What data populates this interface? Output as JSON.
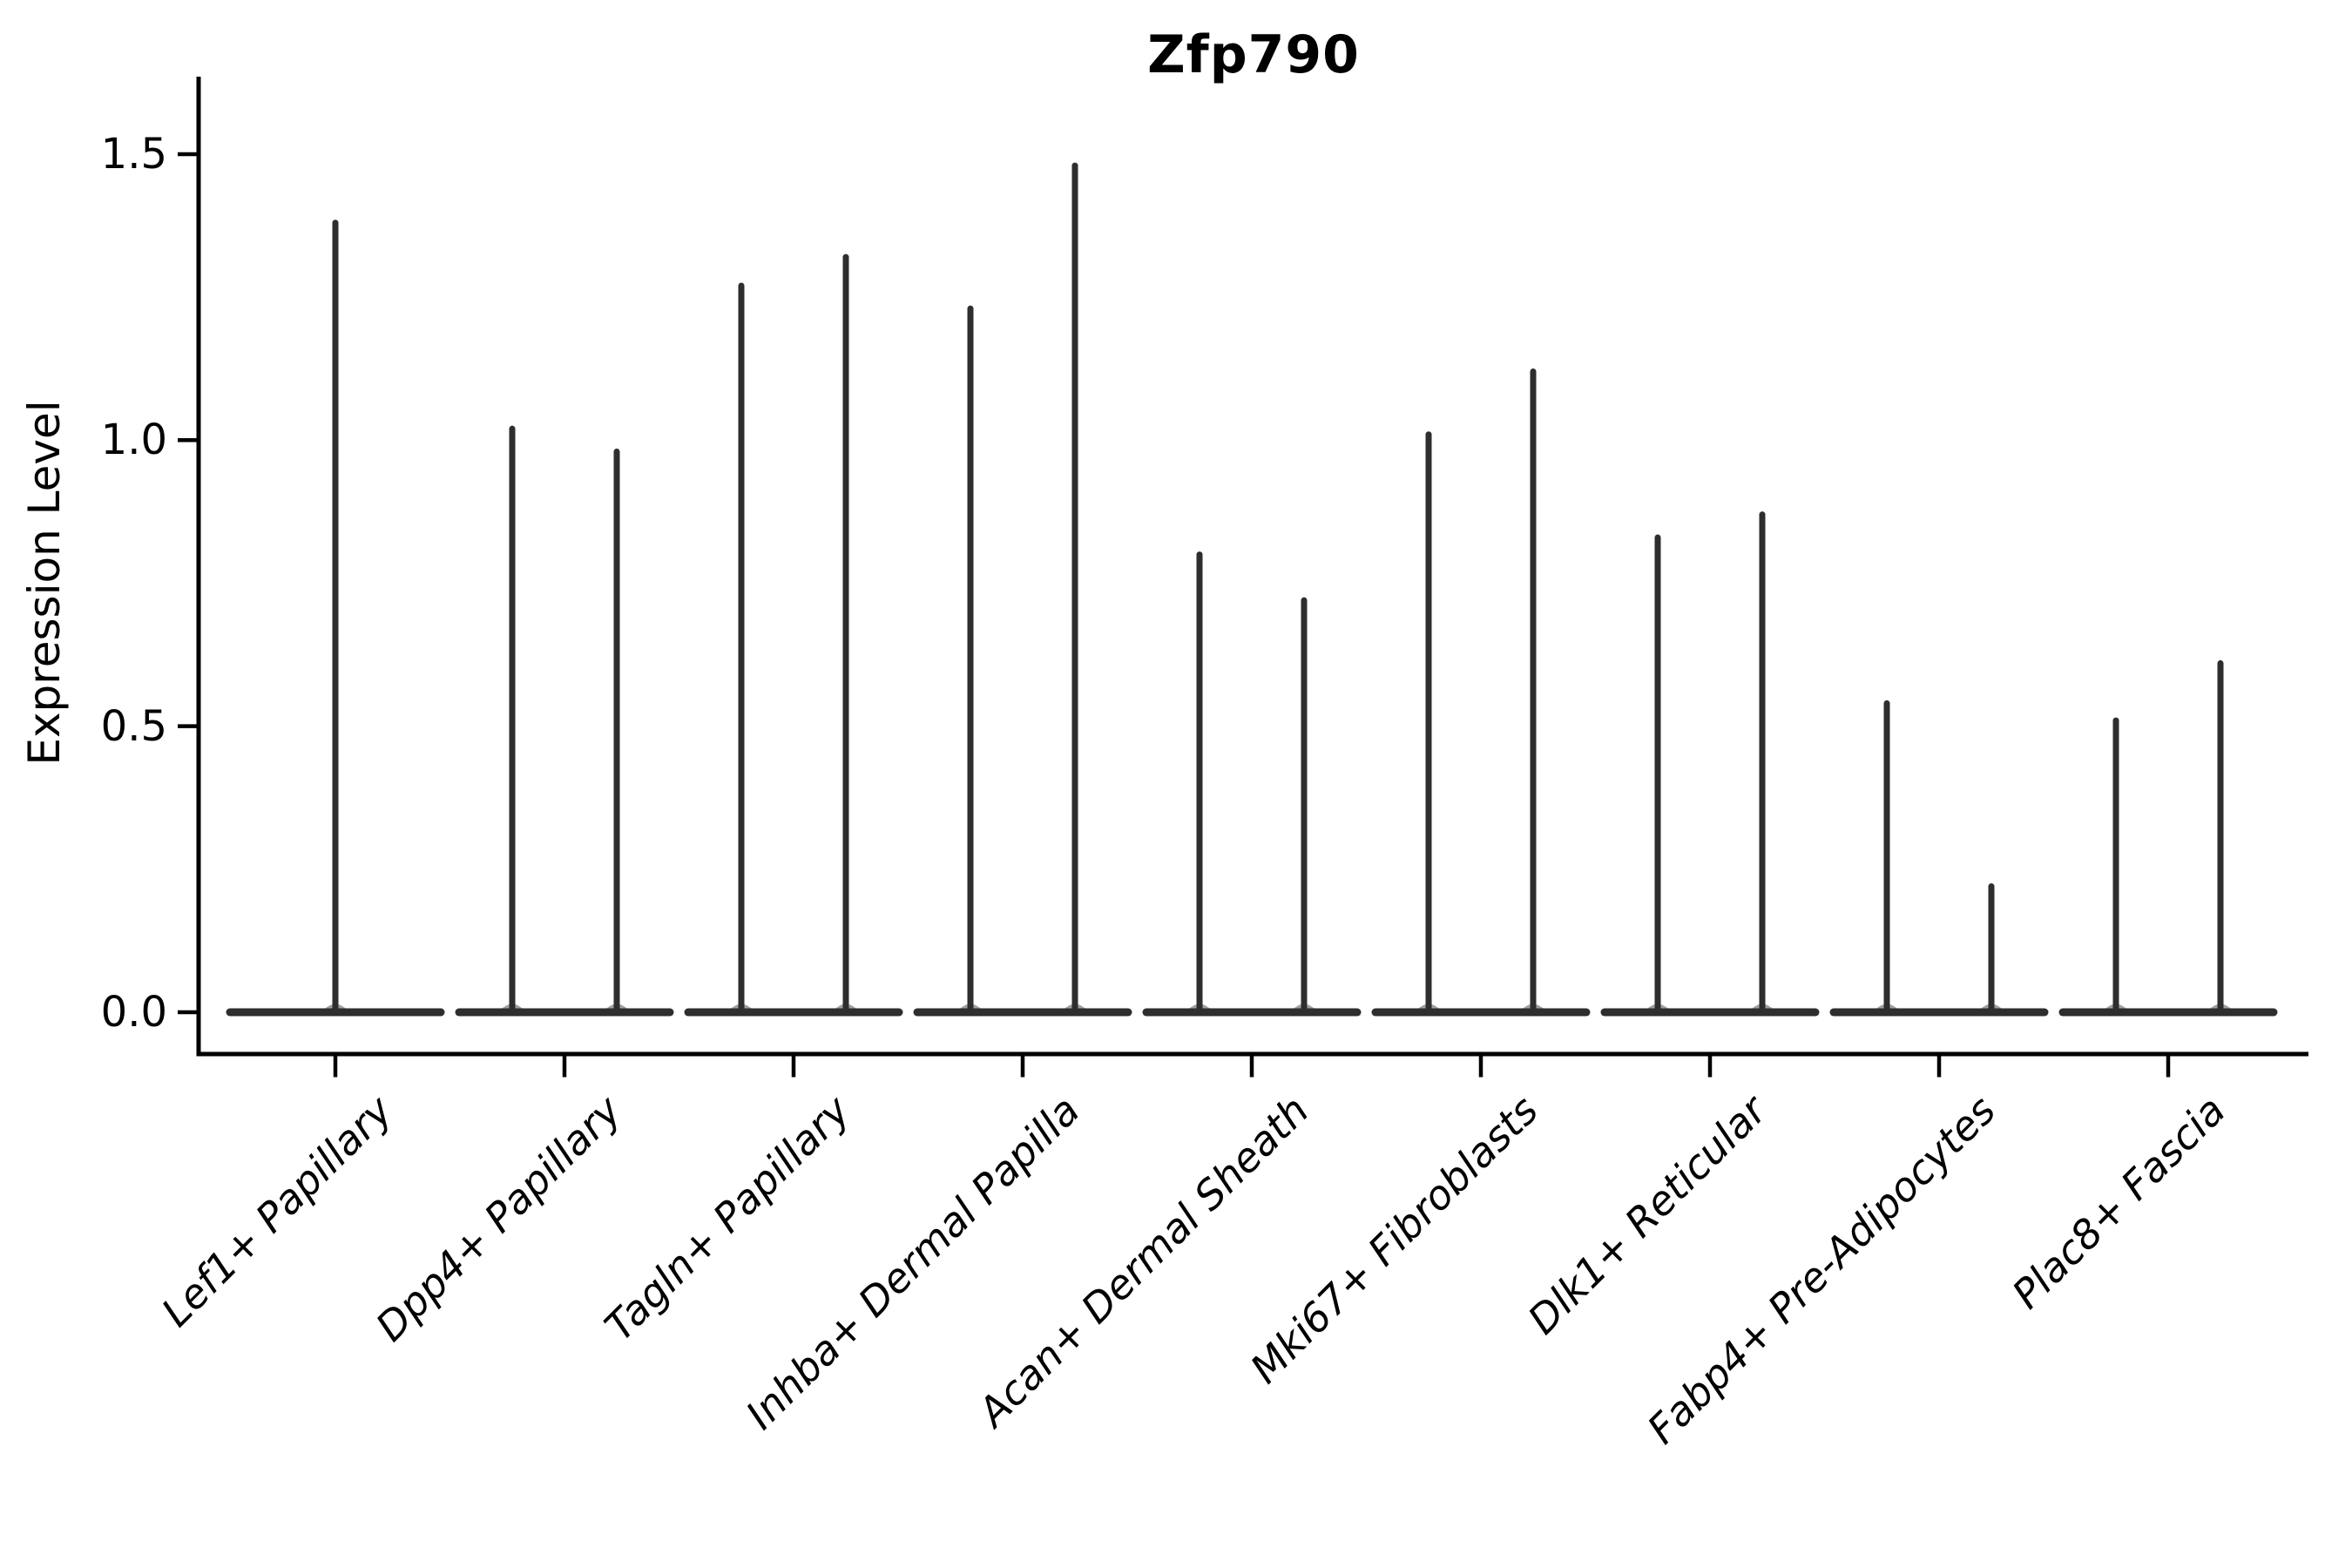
{
  "title": "Zfp790",
  "y_axis": {
    "label": "Expression Level",
    "tick_labels": [
      "0.0",
      "0.5",
      "1.0",
      "1.5"
    ],
    "tick_values": [
      0.0,
      0.5,
      1.0,
      1.5
    ]
  },
  "chart_data": {
    "type": "violin",
    "title": "Zfp790",
    "xlabel": "",
    "ylabel": "Expression Level",
    "ylim": [
      -0.07,
      1.63
    ],
    "yticks": [
      0.0,
      0.5,
      1.0,
      1.5
    ],
    "grid": false,
    "legend": "none",
    "description": "Single-cell gene expression violin plot; each cell-type category shows a flat density base at expression 0 with thin spikes reaching the maximum expression values.",
    "categories": [
      "Lef1+ Papillary",
      "Dpp4+ Papillary",
      "Tagln+ Papillary",
      "Inhba+ Dermal Papilla",
      "Acan+ Dermal Sheath",
      "Mki67+ Fibroblasts",
      "Dlk1+ Reticular",
      "Fabp4+ Pre-Adipocytes",
      "Plac8+ Fascia"
    ],
    "violins": [
      {
        "category": "Lef1+ Papillary",
        "baseline_value": 0.0,
        "spike_max_values": [
          1.38
        ]
      },
      {
        "category": "Dpp4+ Papillary",
        "baseline_value": 0.0,
        "spike_max_values": [
          1.02,
          0.98
        ]
      },
      {
        "category": "Tagln+ Papillary",
        "baseline_value": 0.0,
        "spike_max_values": [
          1.27,
          1.32
        ]
      },
      {
        "category": "Inhba+ Dermal Papilla",
        "baseline_value": 0.0,
        "spike_max_values": [
          1.23,
          1.48
        ]
      },
      {
        "category": "Acan+ Dermal Sheath",
        "baseline_value": 0.0,
        "spike_max_values": [
          0.8,
          0.72
        ]
      },
      {
        "category": "Mki67+ Fibroblasts",
        "baseline_value": 0.0,
        "spike_max_values": [
          1.01,
          1.12
        ]
      },
      {
        "category": "Dlk1+ Reticular",
        "baseline_value": 0.0,
        "spike_max_values": [
          0.83,
          0.87
        ]
      },
      {
        "category": "Fabp4+ Pre-Adipocytes",
        "baseline_value": 0.0,
        "spike_max_values": [
          0.54,
          0.22
        ]
      },
      {
        "category": "Plac8+ Fascia",
        "baseline_value": 0.0,
        "spike_max_values": [
          0.51,
          0.61
        ]
      }
    ],
    "colors": {
      "violin": "#2e2e2e",
      "axis": "#000000",
      "text": "#000000",
      "background": "#ffffff"
    }
  }
}
